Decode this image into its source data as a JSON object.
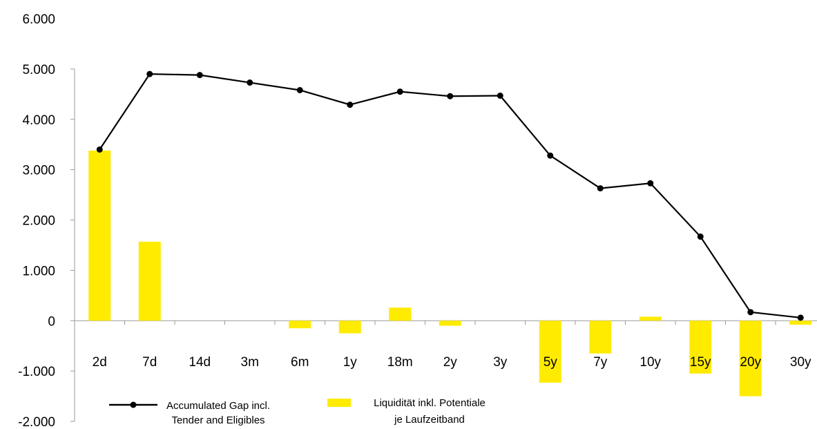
{
  "chart_data": {
    "type": "bar",
    "categories": [
      "2d",
      "7d",
      "14d",
      "3m",
      "6m",
      "1y",
      "18m",
      "2y",
      "3y",
      "5y",
      "7y",
      "10y",
      "15y",
      "20y",
      "30y"
    ],
    "series": [
      {
        "name": "Liquidität inkl. Potentiale je Laufzeitband",
        "type": "bar",
        "color": "#ffeb00",
        "values": [
          3380,
          1570,
          0,
          0,
          -150,
          -250,
          260,
          -100,
          0,
          -1230,
          -650,
          80,
          -1050,
          -1500,
          -80
        ]
      },
      {
        "name": "Accumulated Gap incl. Tender and Eligibles",
        "type": "line",
        "color": "#000000",
        "values": [
          3400,
          4900,
          4880,
          4730,
          4580,
          4290,
          4550,
          4460,
          4470,
          3280,
          2630,
          2730,
          1670,
          170,
          60
        ]
      }
    ],
    "ylim": [
      -2000,
      6000
    ],
    "yticks": [
      "6.000",
      "5.000",
      "4.000",
      "3.000",
      "2.000",
      "1.000",
      "0",
      "-1.000",
      "-2.000"
    ],
    "ytick_values": [
      6000,
      5000,
      4000,
      3000,
      2000,
      1000,
      0,
      -1000,
      -2000
    ],
    "legend": {
      "line_label_1": "Accumulated Gap incl.",
      "line_label_2": "Tender and Eligibles",
      "bar_label_1": "Liquidität inkl. Potentiale",
      "bar_label_2": "je Laufzeitband",
      "position": "bottom"
    }
  }
}
